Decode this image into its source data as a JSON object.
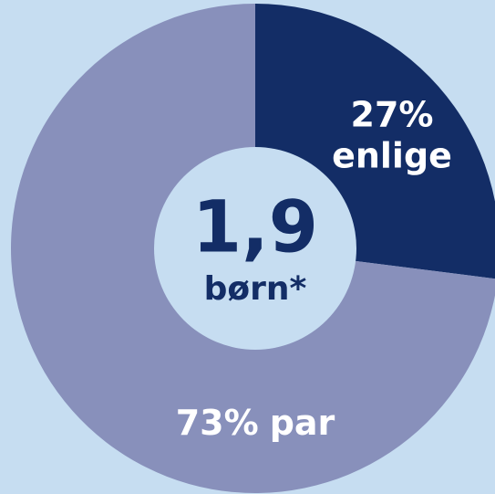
{
  "chart_data": {
    "type": "pie",
    "categories": [
      "enlige",
      "par"
    ],
    "values": [
      27,
      73
    ],
    "value_labels": [
      "27%",
      "73%"
    ],
    "colors": [
      "#132d66",
      "#8890bb"
    ],
    "center_value": "1,9",
    "center_label": "børn*"
  }
}
